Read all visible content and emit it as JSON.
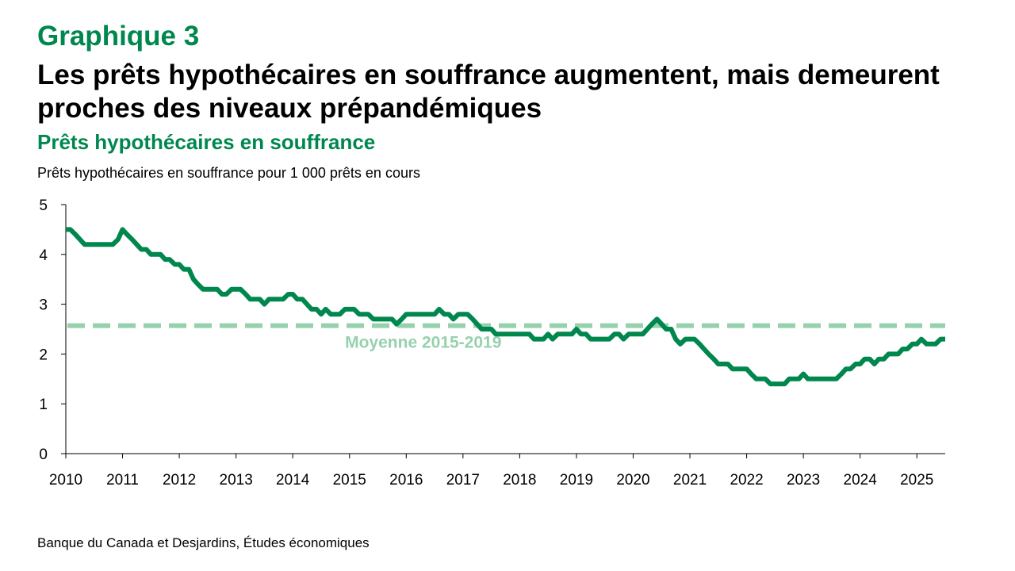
{
  "header": {
    "kicker": "Graphique 3",
    "title": "Les prêts hypothécaires en souffrance augmentent, mais demeurent proches des niveaux prépandémiques",
    "subtitle": "Prêts hypothécaires en souffrance"
  },
  "footer": {
    "source": "Banque du Canada et Desjardins, Études économiques"
  },
  "colors": {
    "series": "#00874e",
    "average": "#96d1ad",
    "axis": "#000000"
  },
  "chart_data": {
    "type": "line",
    "title": "Prêts hypothécaires en souffrance",
    "ylabel": "Prêts hypothécaires en souffrance pour 1 000 prêts en cours",
    "xlabel": "",
    "xlim": [
      2010,
      2025.5
    ],
    "ylim": [
      0,
      5
    ],
    "yticks": [
      0,
      1,
      2,
      3,
      4,
      5
    ],
    "xticks": [
      "2010",
      "2011",
      "2012",
      "2013",
      "2014",
      "2015",
      "2016",
      "2017",
      "2018",
      "2019",
      "2020",
      "2021",
      "2022",
      "2023",
      "2024",
      "2025"
    ],
    "grid": false,
    "series": [
      {
        "name": "Prêts hypothécaires en souffrance",
        "points": [
          [
            2010.0,
            4.5
          ],
          [
            2010.08,
            4.5
          ],
          [
            2010.17,
            4.4
          ],
          [
            2010.25,
            4.3
          ],
          [
            2010.33,
            4.2
          ],
          [
            2010.42,
            4.2
          ],
          [
            2010.5,
            4.2
          ],
          [
            2010.58,
            4.2
          ],
          [
            2010.67,
            4.2
          ],
          [
            2010.75,
            4.2
          ],
          [
            2010.83,
            4.2
          ],
          [
            2010.92,
            4.3
          ],
          [
            2011.0,
            4.5
          ],
          [
            2011.08,
            4.4
          ],
          [
            2011.17,
            4.3
          ],
          [
            2011.25,
            4.2
          ],
          [
            2011.33,
            4.1
          ],
          [
            2011.42,
            4.1
          ],
          [
            2011.5,
            4.0
          ],
          [
            2011.58,
            4.0
          ],
          [
            2011.67,
            4.0
          ],
          [
            2011.75,
            3.9
          ],
          [
            2011.83,
            3.9
          ],
          [
            2011.92,
            3.8
          ],
          [
            2012.0,
            3.8
          ],
          [
            2012.08,
            3.7
          ],
          [
            2012.17,
            3.7
          ],
          [
            2012.25,
            3.5
          ],
          [
            2012.33,
            3.4
          ],
          [
            2012.42,
            3.3
          ],
          [
            2012.5,
            3.3
          ],
          [
            2012.58,
            3.3
          ],
          [
            2012.67,
            3.3
          ],
          [
            2012.75,
            3.2
          ],
          [
            2012.83,
            3.2
          ],
          [
            2012.92,
            3.3
          ],
          [
            2013.0,
            3.3
          ],
          [
            2013.08,
            3.3
          ],
          [
            2013.17,
            3.2
          ],
          [
            2013.25,
            3.1
          ],
          [
            2013.33,
            3.1
          ],
          [
            2013.42,
            3.1
          ],
          [
            2013.5,
            3.0
          ],
          [
            2013.58,
            3.1
          ],
          [
            2013.67,
            3.1
          ],
          [
            2013.75,
            3.1
          ],
          [
            2013.83,
            3.1
          ],
          [
            2013.92,
            3.2
          ],
          [
            2014.0,
            3.2
          ],
          [
            2014.08,
            3.1
          ],
          [
            2014.17,
            3.1
          ],
          [
            2014.25,
            3.0
          ],
          [
            2014.33,
            2.9
          ],
          [
            2014.42,
            2.9
          ],
          [
            2014.5,
            2.8
          ],
          [
            2014.58,
            2.9
          ],
          [
            2014.67,
            2.8
          ],
          [
            2014.75,
            2.8
          ],
          [
            2014.83,
            2.8
          ],
          [
            2014.92,
            2.9
          ],
          [
            2015.0,
            2.9
          ],
          [
            2015.08,
            2.9
          ],
          [
            2015.17,
            2.8
          ],
          [
            2015.25,
            2.8
          ],
          [
            2015.33,
            2.8
          ],
          [
            2015.42,
            2.7
          ],
          [
            2015.5,
            2.7
          ],
          [
            2015.58,
            2.7
          ],
          [
            2015.67,
            2.7
          ],
          [
            2015.75,
            2.7
          ],
          [
            2015.83,
            2.6
          ],
          [
            2015.92,
            2.7
          ],
          [
            2016.0,
            2.8
          ],
          [
            2016.08,
            2.8
          ],
          [
            2016.17,
            2.8
          ],
          [
            2016.25,
            2.8
          ],
          [
            2016.33,
            2.8
          ],
          [
            2016.42,
            2.8
          ],
          [
            2016.5,
            2.8
          ],
          [
            2016.58,
            2.9
          ],
          [
            2016.67,
            2.8
          ],
          [
            2016.75,
            2.8
          ],
          [
            2016.83,
            2.7
          ],
          [
            2016.92,
            2.8
          ],
          [
            2017.0,
            2.8
          ],
          [
            2017.08,
            2.8
          ],
          [
            2017.17,
            2.7
          ],
          [
            2017.25,
            2.6
          ],
          [
            2017.33,
            2.5
          ],
          [
            2017.42,
            2.5
          ],
          [
            2017.5,
            2.5
          ],
          [
            2017.58,
            2.4
          ],
          [
            2017.67,
            2.4
          ],
          [
            2017.75,
            2.4
          ],
          [
            2017.83,
            2.4
          ],
          [
            2017.92,
            2.4
          ],
          [
            2018.0,
            2.4
          ],
          [
            2018.08,
            2.4
          ],
          [
            2018.17,
            2.4
          ],
          [
            2018.25,
            2.3
          ],
          [
            2018.33,
            2.3
          ],
          [
            2018.42,
            2.3
          ],
          [
            2018.5,
            2.4
          ],
          [
            2018.58,
            2.3
          ],
          [
            2018.67,
            2.4
          ],
          [
            2018.75,
            2.4
          ],
          [
            2018.83,
            2.4
          ],
          [
            2018.92,
            2.4
          ],
          [
            2019.0,
            2.5
          ],
          [
            2019.08,
            2.4
          ],
          [
            2019.17,
            2.4
          ],
          [
            2019.25,
            2.3
          ],
          [
            2019.33,
            2.3
          ],
          [
            2019.42,
            2.3
          ],
          [
            2019.5,
            2.3
          ],
          [
            2019.58,
            2.3
          ],
          [
            2019.67,
            2.4
          ],
          [
            2019.75,
            2.4
          ],
          [
            2019.83,
            2.3
          ],
          [
            2019.92,
            2.4
          ],
          [
            2020.0,
            2.4
          ],
          [
            2020.08,
            2.4
          ],
          [
            2020.17,
            2.4
          ],
          [
            2020.25,
            2.5
          ],
          [
            2020.33,
            2.6
          ],
          [
            2020.42,
            2.7
          ],
          [
            2020.5,
            2.6
          ],
          [
            2020.58,
            2.5
          ],
          [
            2020.67,
            2.5
          ],
          [
            2020.75,
            2.3
          ],
          [
            2020.83,
            2.2
          ],
          [
            2020.92,
            2.3
          ],
          [
            2021.0,
            2.3
          ],
          [
            2021.08,
            2.3
          ],
          [
            2021.17,
            2.2
          ],
          [
            2021.25,
            2.1
          ],
          [
            2021.33,
            2.0
          ],
          [
            2021.42,
            1.9
          ],
          [
            2021.5,
            1.8
          ],
          [
            2021.58,
            1.8
          ],
          [
            2021.67,
            1.8
          ],
          [
            2021.75,
            1.7
          ],
          [
            2021.83,
            1.7
          ],
          [
            2021.92,
            1.7
          ],
          [
            2022.0,
            1.7
          ],
          [
            2022.08,
            1.6
          ],
          [
            2022.17,
            1.5
          ],
          [
            2022.25,
            1.5
          ],
          [
            2022.33,
            1.5
          ],
          [
            2022.42,
            1.4
          ],
          [
            2022.5,
            1.4
          ],
          [
            2022.58,
            1.4
          ],
          [
            2022.67,
            1.4
          ],
          [
            2022.75,
            1.5
          ],
          [
            2022.83,
            1.5
          ],
          [
            2022.92,
            1.5
          ],
          [
            2023.0,
            1.6
          ],
          [
            2023.08,
            1.5
          ],
          [
            2023.17,
            1.5
          ],
          [
            2023.25,
            1.5
          ],
          [
            2023.33,
            1.5
          ],
          [
            2023.42,
            1.5
          ],
          [
            2023.5,
            1.5
          ],
          [
            2023.58,
            1.5
          ],
          [
            2023.67,
            1.6
          ],
          [
            2023.75,
            1.7
          ],
          [
            2023.83,
            1.7
          ],
          [
            2023.92,
            1.8
          ],
          [
            2024.0,
            1.8
          ],
          [
            2024.08,
            1.9
          ],
          [
            2024.17,
            1.9
          ],
          [
            2024.25,
            1.8
          ],
          [
            2024.33,
            1.9
          ],
          [
            2024.42,
            1.9
          ],
          [
            2024.5,
            2.0
          ],
          [
            2024.58,
            2.0
          ],
          [
            2024.67,
            2.0
          ],
          [
            2024.75,
            2.1
          ],
          [
            2024.83,
            2.1
          ],
          [
            2024.92,
            2.2
          ],
          [
            2025.0,
            2.2
          ],
          [
            2025.08,
            2.3
          ],
          [
            2025.17,
            2.2
          ],
          [
            2025.25,
            2.2
          ],
          [
            2025.33,
            2.2
          ],
          [
            2025.42,
            2.3
          ],
          [
            2025.5,
            2.3
          ]
        ]
      }
    ],
    "reference_line": {
      "label": "Moyenne 2015-2019",
      "value": 2.57
    }
  }
}
